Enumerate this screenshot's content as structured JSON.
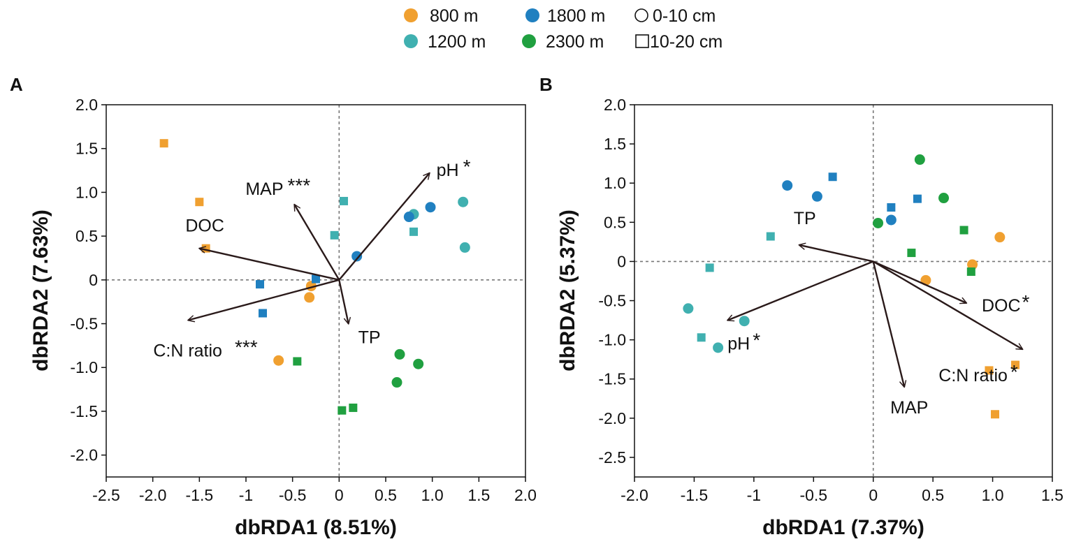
{
  "legend": {
    "items": [
      {
        "label": "800 m",
        "color": "#f0a030",
        "marker": "circle"
      },
      {
        "label": "1800 m",
        "color": "#2080c0",
        "marker": "circle"
      },
      {
        "label": "0-10 cm",
        "color": "#ffffff",
        "marker": "circle-open"
      },
      {
        "label": "1200 m",
        "color": "#40b0b0",
        "marker": "circle"
      },
      {
        "label": "2300 m",
        "color": "#20a040",
        "marker": "circle"
      },
      {
        "label": "10-20 cm",
        "color": "#ffffff",
        "marker": "square-open"
      }
    ]
  },
  "colors": {
    "800 m": "#f0a030",
    "1200 m": "#40b0b0",
    "1800 m": "#2080c0",
    "2300 m": "#20a040",
    "arrow": "#2a1a1a"
  },
  "chart_data": [
    {
      "panel": "A",
      "type": "scatter",
      "xlabel": "dbRDA1 (8.51%)",
      "ylabel": "dbRDA2 (7.63%)",
      "xlim": [
        -2.5,
        2.0
      ],
      "ylim": [
        -2.25,
        2.0
      ],
      "xticks": [
        -2.5,
        -2.0,
        -1.5,
        -1,
        -0.5,
        0,
        0.5,
        1.0,
        1.5,
        2.0
      ],
      "xtick_labels": [
        "-2.5",
        "-2.0",
        "-1.5",
        "-1",
        "-0.5",
        "0",
        "0.5",
        "1.0",
        "1.5",
        "2.0"
      ],
      "yticks": [
        2.0,
        1.5,
        1.0,
        0.5,
        0,
        -0.5,
        -1.0,
        -1.5,
        -2.0
      ],
      "ytick_labels": [
        "2.0",
        "1.5",
        "1.0",
        "0.5",
        "0",
        "-0.5",
        "-1.0",
        "-1.5",
        "-2.0"
      ],
      "points": [
        {
          "x": -1.88,
          "y": 1.56,
          "elevation": "800 m",
          "depth": "10-20 cm"
        },
        {
          "x": -1.5,
          "y": 0.89,
          "elevation": "800 m",
          "depth": "10-20 cm"
        },
        {
          "x": -1.43,
          "y": 0.36,
          "elevation": "800 m",
          "depth": "10-20 cm"
        },
        {
          "x": -0.3,
          "y": -0.07,
          "elevation": "800 m",
          "depth": "0-10 cm"
        },
        {
          "x": -0.32,
          "y": -0.2,
          "elevation": "800 m",
          "depth": "0-10 cm"
        },
        {
          "x": -0.65,
          "y": -0.92,
          "elevation": "800 m",
          "depth": "0-10 cm"
        },
        {
          "x": -0.05,
          "y": 0.51,
          "elevation": "1200 m",
          "depth": "10-20 cm"
        },
        {
          "x": 0.05,
          "y": 0.9,
          "elevation": "1200 m",
          "depth": "10-20 cm"
        },
        {
          "x": 0.8,
          "y": 0.55,
          "elevation": "1200 m",
          "depth": "10-20 cm"
        },
        {
          "x": 0.8,
          "y": 0.75,
          "elevation": "1200 m",
          "depth": "0-10 cm"
        },
        {
          "x": 1.33,
          "y": 0.89,
          "elevation": "1200 m",
          "depth": "0-10 cm"
        },
        {
          "x": 1.35,
          "y": 0.37,
          "elevation": "1200 m",
          "depth": "0-10 cm"
        },
        {
          "x": -0.85,
          "y": -0.05,
          "elevation": "1800 m",
          "depth": "10-20 cm"
        },
        {
          "x": -0.82,
          "y": -0.38,
          "elevation": "1800 m",
          "depth": "10-20 cm"
        },
        {
          "x": -0.25,
          "y": 0.01,
          "elevation": "1800 m",
          "depth": "10-20 cm"
        },
        {
          "x": 0.19,
          "y": 0.27,
          "elevation": "1800 m",
          "depth": "0-10 cm"
        },
        {
          "x": 0.75,
          "y": 0.72,
          "elevation": "1800 m",
          "depth": "0-10 cm"
        },
        {
          "x": 0.98,
          "y": 0.83,
          "elevation": "1800 m",
          "depth": "0-10 cm"
        },
        {
          "x": -0.45,
          "y": -0.93,
          "elevation": "2300 m",
          "depth": "10-20 cm"
        },
        {
          "x": 0.03,
          "y": -1.49,
          "elevation": "2300 m",
          "depth": "10-20 cm"
        },
        {
          "x": 0.15,
          "y": -1.46,
          "elevation": "2300 m",
          "depth": "10-20 cm"
        },
        {
          "x": 0.65,
          "y": -0.85,
          "elevation": "2300 m",
          "depth": "0-10 cm"
        },
        {
          "x": 0.85,
          "y": -0.96,
          "elevation": "2300 m",
          "depth": "0-10 cm"
        },
        {
          "x": 0.62,
          "y": -1.17,
          "elevation": "2300 m",
          "depth": "0-10 cm"
        }
      ],
      "vectors": [
        {
          "name": "pH",
          "sig": "*",
          "x": 0.97,
          "y": 1.22
        },
        {
          "name": "MAP",
          "sig": "***",
          "x": -0.48,
          "y": 0.86
        },
        {
          "name": "DOC",
          "sig": "",
          "x": -1.5,
          "y": 0.36
        },
        {
          "name": "C:N ratio",
          "sig": "***",
          "x": -1.62,
          "y": -0.46
        },
        {
          "name": "TP",
          "sig": "",
          "x": 0.1,
          "y": -0.5
        }
      ]
    },
    {
      "panel": "B",
      "type": "scatter",
      "xlabel": "dbRDA1 (7.37%)",
      "ylabel": "dbRDA2 (5.37%)",
      "xlim": [
        -2.0,
        1.5
      ],
      "ylim": [
        -2.75,
        2.0
      ],
      "xticks": [
        -2.0,
        -1.5,
        -1,
        -0.5,
        0,
        0.5,
        1.0,
        1.5
      ],
      "xtick_labels": [
        "-2.0",
        "-1.5",
        "-1",
        "-0.5",
        "0",
        "0.5",
        "1.0",
        "1.5"
      ],
      "yticks": [
        2.0,
        1.5,
        1.0,
        0.5,
        0,
        -0.5,
        -1.0,
        -1.5,
        -2.0,
        -2.5
      ],
      "ytick_labels": [
        "2.0",
        "1.5",
        "1.0",
        "0.5",
        "0",
        "-0.5",
        "-1.0",
        "-1.5",
        "-2.0",
        "-2.5"
      ],
      "points": [
        {
          "x": 0.44,
          "y": -0.24,
          "elevation": "800 m",
          "depth": "0-10 cm"
        },
        {
          "x": 1.06,
          "y": 0.31,
          "elevation": "800 m",
          "depth": "0-10 cm"
        },
        {
          "x": 0.83,
          "y": -0.04,
          "elevation": "800 m",
          "depth": "0-10 cm"
        },
        {
          "x": 0.97,
          "y": -1.39,
          "elevation": "800 m",
          "depth": "10-20 cm"
        },
        {
          "x": 1.19,
          "y": -1.32,
          "elevation": "800 m",
          "depth": "10-20 cm"
        },
        {
          "x": 1.02,
          "y": -1.95,
          "elevation": "800 m",
          "depth": "10-20 cm"
        },
        {
          "x": -1.55,
          "y": -0.6,
          "elevation": "1200 m",
          "depth": "0-10 cm"
        },
        {
          "x": -1.3,
          "y": -1.1,
          "elevation": "1200 m",
          "depth": "0-10 cm"
        },
        {
          "x": -1.08,
          "y": -0.76,
          "elevation": "1200 m",
          "depth": "0-10 cm"
        },
        {
          "x": -1.37,
          "y": -0.08,
          "elevation": "1200 m",
          "depth": "10-20 cm"
        },
        {
          "x": -1.44,
          "y": -0.97,
          "elevation": "1200 m",
          "depth": "10-20 cm"
        },
        {
          "x": -0.86,
          "y": 0.32,
          "elevation": "1200 m",
          "depth": "10-20 cm"
        },
        {
          "x": -0.72,
          "y": 0.97,
          "elevation": "1800 m",
          "depth": "0-10 cm"
        },
        {
          "x": -0.47,
          "y": 0.83,
          "elevation": "1800 m",
          "depth": "0-10 cm"
        },
        {
          "x": 0.15,
          "y": 0.53,
          "elevation": "1800 m",
          "depth": "0-10 cm"
        },
        {
          "x": -0.34,
          "y": 1.08,
          "elevation": "1800 m",
          "depth": "10-20 cm"
        },
        {
          "x": 0.15,
          "y": 0.69,
          "elevation": "1800 m",
          "depth": "10-20 cm"
        },
        {
          "x": 0.37,
          "y": 0.8,
          "elevation": "1800 m",
          "depth": "10-20 cm"
        },
        {
          "x": 0.39,
          "y": 1.3,
          "elevation": "2300 m",
          "depth": "0-10 cm"
        },
        {
          "x": 0.59,
          "y": 0.81,
          "elevation": "2300 m",
          "depth": "0-10 cm"
        },
        {
          "x": 0.04,
          "y": 0.49,
          "elevation": "2300 m",
          "depth": "0-10 cm"
        },
        {
          "x": 0.32,
          "y": 0.11,
          "elevation": "2300 m",
          "depth": "10-20 cm"
        },
        {
          "x": 0.76,
          "y": 0.4,
          "elevation": "2300 m",
          "depth": "10-20 cm"
        },
        {
          "x": 0.82,
          "y": -0.13,
          "elevation": "2300 m",
          "depth": "10-20 cm"
        }
      ],
      "vectors": [
        {
          "name": "TP",
          "sig": "",
          "x": -0.62,
          "y": 0.21
        },
        {
          "name": "pH",
          "sig": "*",
          "x": -1.22,
          "y": -0.75
        },
        {
          "name": "DOC",
          "sig": "*",
          "x": 0.78,
          "y": -0.53
        },
        {
          "name": "C:N ratio",
          "sig": "*",
          "x": 1.25,
          "y": -1.12
        },
        {
          "name": "MAP",
          "sig": "",
          "x": 0.26,
          "y": -1.6
        }
      ]
    }
  ],
  "panels": {
    "A": "A",
    "B": "B"
  }
}
